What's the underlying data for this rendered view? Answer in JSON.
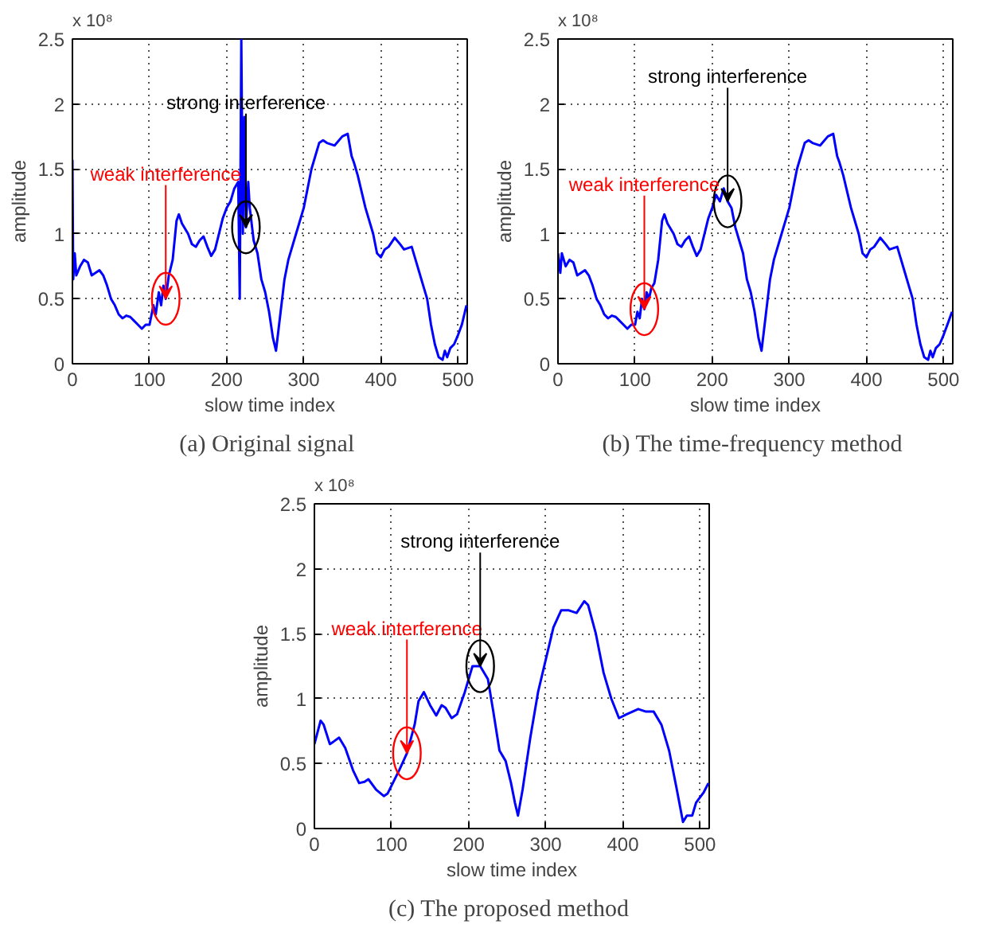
{
  "chart_data": [
    {
      "type": "line",
      "title": "(a)  Original signal",
      "xlabel": "slow time index",
      "ylabel": "amplitude",
      "xlim": [
        0,
        512
      ],
      "ylim": [
        0,
        2.5
      ],
      "xticks": [
        0,
        100,
        200,
        300,
        400,
        500
      ],
      "yticks": [
        0,
        0.5,
        1,
        1.5,
        2,
        2.5
      ],
      "grid": true,
      "line_style": "solid",
      "marker": "none",
      "annotations": [
        "x 10⁸",
        {
          "text": "weak interference",
          "x": 121,
          "y": 0.5
        },
        {
          "text": "strong interference",
          "x": 225,
          "y": 1.05
        }
      ],
      "series": [
        {
          "color": "#0000ff",
          "x": [
            0,
            1,
            3,
            5,
            10,
            15,
            20,
            25,
            30,
            35,
            40,
            45,
            50,
            55,
            60,
            65,
            70,
            75,
            80,
            85,
            90,
            95,
            100,
            105,
            108,
            112,
            115,
            118,
            121,
            125,
            130,
            135,
            138,
            142,
            150,
            155,
            160,
            165,
            170,
            175,
            180,
            185,
            190,
            195,
            200,
            205,
            210,
            215,
            217,
            219,
            221,
            223,
            225,
            228,
            230,
            235,
            240,
            245,
            250,
            255,
            260,
            264,
            268,
            275,
            280,
            290,
            300,
            310,
            320,
            325,
            330,
            340,
            350,
            357,
            362,
            365,
            370,
            380,
            390,
            395,
            400,
            405,
            410,
            418,
            425,
            430,
            440,
            445,
            450,
            455,
            460,
            465,
            470,
            475,
            480,
            483,
            486,
            490,
            495,
            500,
            505,
            511
          ],
          "values": [
            1.57,
            0.65,
            0.85,
            0.68,
            0.75,
            0.8,
            0.78,
            0.68,
            0.7,
            0.72,
            0.68,
            0.6,
            0.5,
            0.45,
            0.38,
            0.35,
            0.37,
            0.36,
            0.33,
            0.3,
            0.27,
            0.3,
            0.3,
            0.45,
            0.38,
            0.55,
            0.45,
            0.6,
            0.5,
            0.68,
            0.8,
            1.1,
            1.15,
            1.08,
            1.0,
            0.92,
            0.9,
            0.95,
            0.98,
            0.9,
            0.83,
            0.88,
            1.0,
            1.12,
            1.2,
            1.25,
            1.35,
            1.4,
            0.5,
            2.5,
            1.0,
            1.9,
            1.05,
            1.4,
            1.2,
            0.95,
            0.85,
            0.65,
            0.55,
            0.4,
            0.2,
            0.1,
            0.3,
            0.65,
            0.8,
            1.0,
            1.2,
            1.5,
            1.7,
            1.72,
            1.7,
            1.68,
            1.75,
            1.77,
            1.6,
            1.55,
            1.45,
            1.2,
            1.0,
            0.85,
            0.82,
            0.88,
            0.9,
            0.97,
            0.92,
            0.88,
            0.9,
            0.8,
            0.7,
            0.6,
            0.5,
            0.3,
            0.15,
            0.05,
            0.03,
            0.1,
            0.05,
            0.12,
            0.15,
            0.22,
            0.3,
            0.45
          ]
        }
      ]
    },
    {
      "type": "line",
      "title": "(b)  The time-frequency method",
      "xlabel": "slow time index",
      "ylabel": "amplitude",
      "xlim": [
        0,
        512
      ],
      "ylim": [
        0,
        2.5
      ],
      "xticks": [
        0,
        100,
        200,
        300,
        400,
        500
      ],
      "yticks": [
        0,
        0.5,
        1,
        1.5,
        2,
        2.5
      ],
      "grid": true,
      "line_style": "solid",
      "marker": "none",
      "annotations": [
        "x 10⁸",
        {
          "text": "weak interference",
          "x": 112,
          "y": 0.42
        },
        {
          "text": "strong interference",
          "x": 220,
          "y": 1.25
        }
      ],
      "series": [
        {
          "color": "#0000ff",
          "x": [
            0,
            3,
            5,
            10,
            15,
            20,
            25,
            30,
            35,
            40,
            45,
            50,
            55,
            60,
            65,
            70,
            75,
            80,
            85,
            90,
            95,
            100,
            103,
            106,
            109,
            112,
            115,
            118,
            121,
            125,
            130,
            135,
            138,
            142,
            150,
            155,
            160,
            165,
            170,
            175,
            180,
            185,
            190,
            195,
            200,
            205,
            210,
            215,
            220,
            225,
            230,
            235,
            240,
            245,
            250,
            255,
            260,
            264,
            268,
            275,
            280,
            290,
            300,
            310,
            320,
            325,
            330,
            340,
            350,
            357,
            362,
            365,
            370,
            380,
            390,
            395,
            400,
            405,
            410,
            418,
            425,
            430,
            440,
            445,
            450,
            455,
            460,
            465,
            470,
            475,
            480,
            483,
            486,
            490,
            495,
            500,
            505,
            511
          ],
          "values": [
            0.85,
            0.7,
            0.85,
            0.75,
            0.8,
            0.78,
            0.68,
            0.7,
            0.72,
            0.68,
            0.6,
            0.5,
            0.45,
            0.38,
            0.35,
            0.37,
            0.36,
            0.33,
            0.3,
            0.27,
            0.3,
            0.3,
            0.4,
            0.35,
            0.5,
            0.42,
            0.55,
            0.5,
            0.58,
            0.62,
            0.8,
            1.1,
            1.15,
            1.08,
            1.0,
            0.92,
            0.9,
            0.95,
            0.98,
            0.9,
            0.83,
            0.88,
            1.0,
            1.12,
            1.2,
            1.3,
            1.25,
            1.35,
            1.25,
            1.2,
            1.05,
            0.95,
            0.85,
            0.65,
            0.55,
            0.4,
            0.2,
            0.1,
            0.3,
            0.65,
            0.8,
            1.0,
            1.2,
            1.5,
            1.7,
            1.72,
            1.7,
            1.68,
            1.75,
            1.77,
            1.6,
            1.55,
            1.45,
            1.2,
            1.0,
            0.85,
            0.82,
            0.88,
            0.9,
            0.97,
            0.92,
            0.88,
            0.9,
            0.8,
            0.7,
            0.6,
            0.5,
            0.3,
            0.15,
            0.05,
            0.03,
            0.1,
            0.05,
            0.12,
            0.15,
            0.22,
            0.3,
            0.4
          ]
        }
      ]
    },
    {
      "type": "line",
      "title": "(c)  The proposed method",
      "xlabel": "slow time index",
      "ylabel": "amplitude",
      "xlim": [
        0,
        512
      ],
      "ylim": [
        0,
        2.5
      ],
      "xticks": [
        0,
        100,
        200,
        300,
        400,
        500
      ],
      "yticks": [
        0,
        0.5,
        1,
        1.5,
        2,
        2.5
      ],
      "grid": true,
      "line_style": "solid",
      "marker": "none",
      "annotations": [
        "x 10⁸",
        {
          "text": "weak interference",
          "x": 120,
          "y": 0.58
        },
        {
          "text": "strong interference",
          "x": 215,
          "y": 1.25
        }
      ],
      "series": [
        {
          "color": "#0000ff",
          "x": [
            0,
            8,
            12,
            20,
            25,
            32,
            40,
            50,
            58,
            65,
            70,
            80,
            90,
            95,
            100,
            110,
            120,
            130,
            135,
            142,
            150,
            158,
            165,
            170,
            178,
            185,
            195,
            205,
            215,
            225,
            232,
            240,
            248,
            255,
            260,
            264,
            270,
            280,
            290,
            300,
            310,
            320,
            330,
            340,
            350,
            355,
            365,
            375,
            385,
            395,
            405,
            420,
            430,
            440,
            450,
            460,
            470,
            478,
            483,
            490,
            495,
            505,
            511
          ],
          "values": [
            0.65,
            0.83,
            0.8,
            0.65,
            0.67,
            0.7,
            0.62,
            0.45,
            0.35,
            0.36,
            0.38,
            0.3,
            0.25,
            0.27,
            0.33,
            0.45,
            0.58,
            0.8,
            0.98,
            1.05,
            0.95,
            0.87,
            0.95,
            0.93,
            0.85,
            0.88,
            1.05,
            1.25,
            1.25,
            1.15,
            0.9,
            0.6,
            0.52,
            0.35,
            0.2,
            0.1,
            0.3,
            0.7,
            1.05,
            1.3,
            1.55,
            1.68,
            1.68,
            1.66,
            1.75,
            1.72,
            1.5,
            1.2,
            1.0,
            0.85,
            0.88,
            0.92,
            0.9,
            0.9,
            0.8,
            0.6,
            0.3,
            0.05,
            0.1,
            0.1,
            0.2,
            0.28,
            0.35
          ]
        }
      ]
    }
  ]
}
